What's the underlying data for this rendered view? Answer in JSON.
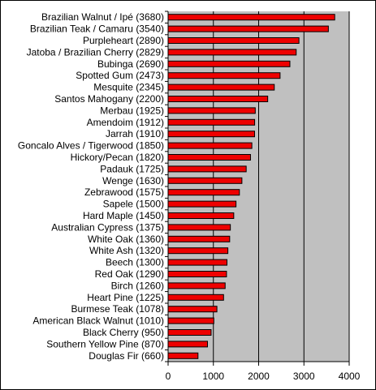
{
  "chart_data": {
    "type": "bar",
    "orientation": "horizontal",
    "title": "",
    "xlabel": "",
    "ylabel": "",
    "xlim": [
      0,
      4000
    ],
    "xticks": [
      "0",
      "1000",
      "2000",
      "3000",
      "4000"
    ],
    "grid": "vertical lines at major ticks",
    "legend": "none",
    "colors": {
      "bar": "#ee0000",
      "bar_edge": "#000000",
      "plot_bg": "#c0c0c0"
    },
    "categories": [
      "Brazilian Walnut / Ipé (3680)",
      "Brazilian Teak / Camaru (3540)",
      "Purpleheart (2890)",
      "Jatoba / Brazilian Cherry (2829)",
      "Bubinga (2690)",
      "Spotted Gum (2473)",
      "Mesquite (2345)",
      "Santos Mahogany (2200)",
      "Merbau (1925)",
      "Amendoim (1912)",
      "Jarrah (1910)",
      "Goncalo Alves / Tigerwood (1850)",
      "Hickory/Pecan (1820)",
      "Padauk (1725)",
      "Wenge (1630)",
      "Zebrawood (1575)",
      "Sapele (1500)",
      "Hard Maple (1450)",
      "Australian Cypress (1375)",
      "White Oak (1360)",
      "White Ash (1320)",
      "Beech (1300)",
      "Red Oak (1290)",
      "Birch (1260)",
      "Heart Pine (1225)",
      "Burmese Teak (1078)",
      "American Black Walnut (1010)",
      "Black Cherry (950)",
      "Southern Yellow Pine (870)",
      "Douglas Fir (660)"
    ],
    "values": [
      3680,
      3540,
      2890,
      2829,
      2690,
      2473,
      2345,
      2200,
      1925,
      1912,
      1910,
      1850,
      1820,
      1725,
      1630,
      1575,
      1500,
      1450,
      1375,
      1360,
      1320,
      1300,
      1290,
      1260,
      1225,
      1078,
      1010,
      950,
      870,
      660
    ]
  }
}
